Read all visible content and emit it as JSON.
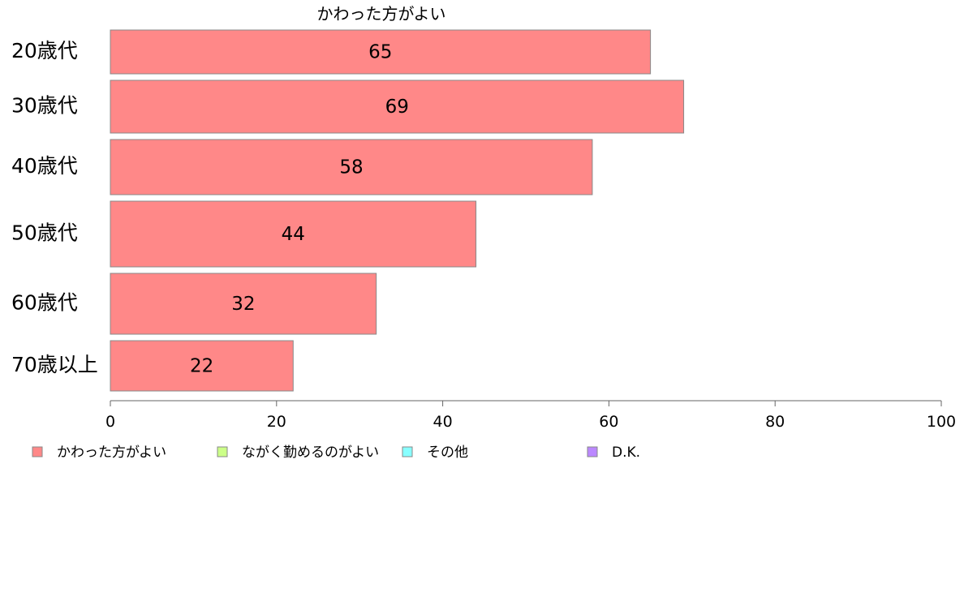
{
  "chart_data": {
    "type": "bar",
    "orientation": "horizontal",
    "title": "かわった方がよい",
    "categories": [
      "20歳代",
      "30歳代",
      "40歳代",
      "50歳代",
      "60歳代",
      "70歳以上"
    ],
    "series": [
      {
        "name": "かわった方がよい",
        "color": "#ff8888",
        "values": [
          65,
          69,
          58,
          44,
          32,
          22
        ]
      }
    ],
    "xlim": [
      0,
      100
    ],
    "xticks": [
      0,
      20,
      40,
      60,
      80,
      100
    ],
    "grid": false,
    "legend_position": "bottom",
    "legend": [
      {
        "label": "かわった方がよい",
        "color": "#ff8888"
      },
      {
        "label": "ながく勤めるのがよい",
        "color": "#ccff88"
      },
      {
        "label": "その他",
        "color": "#88ffff"
      },
      {
        "label": "D.K.",
        "color": "#bb88ff"
      }
    ]
  }
}
